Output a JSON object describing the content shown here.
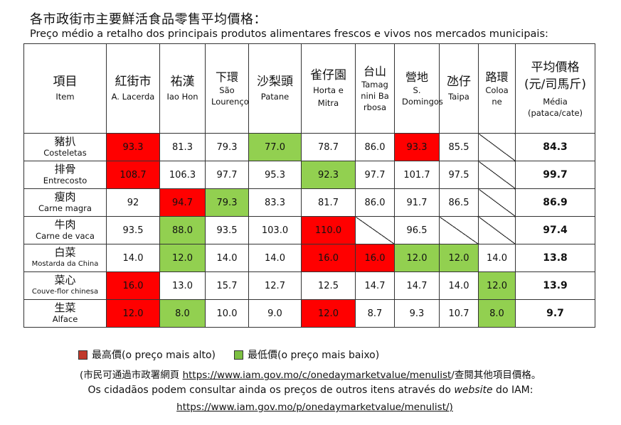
{
  "title_zh": "各市政街市主要鮮活食品零售平均價格：",
  "title_pt": "Preço médio a retalho dos principais produtos alimentares frescos e vivos nos mercados municipais:",
  "header": {
    "item_zh": "項目",
    "item_pt": "Item",
    "markets": [
      {
        "zh": "紅街市",
        "pt": "A. Lacerda"
      },
      {
        "zh": "祐漢",
        "pt": "Iao Hon"
      },
      {
        "zh": "下環",
        "pt": "São Lourenço"
      },
      {
        "zh": "沙梨頭",
        "pt": "Patane"
      },
      {
        "zh": "雀仔園",
        "pt": "Horta e Mitra"
      },
      {
        "zh": "台山",
        "pt": "Tamagnini Barbosa"
      },
      {
        "zh": "營地",
        "pt": "S. Domingos"
      },
      {
        "zh": "氹仔",
        "pt": "Taipa"
      },
      {
        "zh": "路環",
        "pt": "Coloane"
      }
    ],
    "avg_zh": "平均價格(元/司馬斤)",
    "avg_pt": "Média (pataca/cate)"
  },
  "rows": [
    {
      "zh": "豬扒",
      "pt": "Costeletas",
      "values": [
        "93.3",
        "81.3",
        "79.3",
        "77.0",
        "78.7",
        "86.0",
        "93.3",
        "85.5",
        ""
      ],
      "avg": "84.3"
    },
    {
      "zh": "排骨",
      "pt": "Entrecosto",
      "values": [
        "108.7",
        "106.3",
        "97.7",
        "95.3",
        "92.3",
        "97.7",
        "101.7",
        "97.5",
        ""
      ],
      "avg": "99.7"
    },
    {
      "zh": "瘦肉",
      "pt": "Carne magra",
      "values": [
        "92",
        "94.7",
        "79.3",
        "83.3",
        "81.7",
        "86.0",
        "91.7",
        "86.5",
        ""
      ],
      "avg": "86.9"
    },
    {
      "zh": "牛肉",
      "pt": "Carne de vaca",
      "values": [
        "93.5",
        "88.0",
        "93.5",
        "103.0",
        "110.0",
        "",
        "96.5",
        "",
        ""
      ],
      "avg": "97.4"
    },
    {
      "zh": "白菜",
      "pt": "Mostarda da China",
      "values": [
        "14.0",
        "12.0",
        "14.0",
        "14.0",
        "16.0",
        "16.0",
        "12.0",
        "12.0",
        "14.0"
      ],
      "avg": "13.8"
    },
    {
      "zh": "菜心",
      "pt": "Couve-flor chinesa",
      "values": [
        "16.0",
        "13.0",
        "15.7",
        "12.7",
        "12.5",
        "14.7",
        "14.7",
        "14.0",
        "12.0"
      ],
      "avg": "13.9"
    },
    {
      "zh": "生菜",
      "pt": "Alface",
      "values": [
        "12.0",
        "8.0",
        "10.0",
        "9.0",
        "12.0",
        "8.7",
        "9.3",
        "10.7",
        "8.0"
      ],
      "avg": "9.7"
    }
  ],
  "legend": {
    "high_label": "最高價(o preço mais alto)",
    "low_label": "最低價(o preço mais baixo)",
    "high_color": "#ff0000",
    "low_color": "#92d050"
  },
  "note": {
    "zh_prefix": "(市民可通過市政署網頁 ",
    "zh_link": "https://www.iam.gov.mo/c/onedaymarketvalue/menulist",
    "zh_suffix": "/查閱其他項目價格。",
    "pt_text": "Os cidadãos podem consultar ainda os preços de outros itens através do ",
    "pt_website": "website",
    "pt_iam": " do IAM:",
    "pt_link": "https://www.iam.gov.mo/p/onedaymarketvalue/menulist/)"
  }
}
